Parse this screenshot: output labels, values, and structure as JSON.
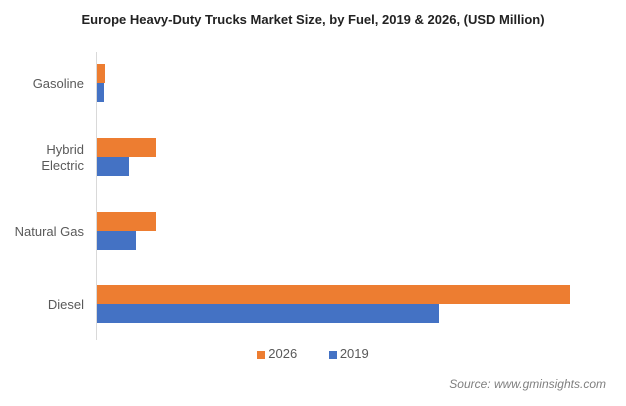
{
  "chart_data": {
    "type": "bar",
    "orientation": "horizontal",
    "title": "Europe Heavy-Duty Trucks Market Size, by Fuel, 2019 & 2026, (USD Million)",
    "xlabel": "",
    "ylabel": "",
    "categories": [
      "Gasoline",
      "Hybrid Electric",
      "Natural Gas",
      "Diesel"
    ],
    "category_lines": [
      [
        "Gasoline"
      ],
      [
        "Hybrid",
        "Electric"
      ],
      [
        "Natural Gas"
      ],
      [
        "Diesel"
      ]
    ],
    "series": [
      {
        "name": "2026",
        "color": "#ED7D31",
        "values": [
          8,
          59,
          59,
          473
        ]
      },
      {
        "name": "2019",
        "color": "#4472C4",
        "values": [
          7,
          32,
          39,
          342
        ]
      }
    ],
    "xlim": [
      0,
      500
    ],
    "grid": false,
    "legend": "bottom",
    "legend_order": [
      "2026",
      "2019"
    ],
    "note": "Values are relative estimates; no axis tick labels are shown"
  },
  "source": "Source: www.gminsights.com"
}
